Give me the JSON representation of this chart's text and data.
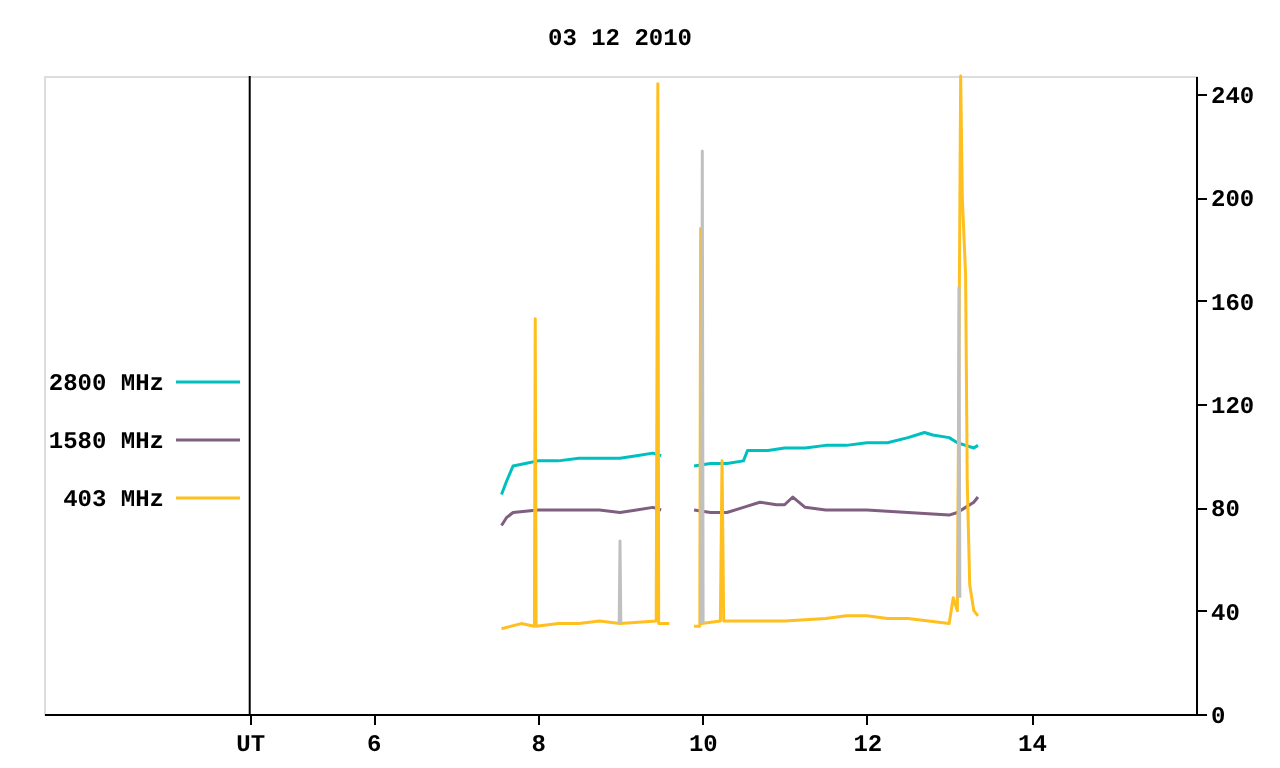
{
  "chart_data": {
    "type": "line",
    "title": "03 12 2010",
    "xlim": [
      2,
      16
    ],
    "xticks": [
      {
        "value": 4.5,
        "label": "UT"
      },
      6,
      8,
      10,
      12,
      14
    ],
    "ylim": [
      0,
      247
    ],
    "yticks": [
      0,
      40,
      80,
      120,
      160,
      200,
      240
    ],
    "grid": false,
    "legend": "left",
    "marker": "none",
    "line_style": "solid",
    "ref_lines": [
      {
        "axis": "x",
        "value": 4.5,
        "color": "#000000"
      }
    ],
    "series": [
      {
        "name": "2800 MHz",
        "color": "#00bfbf",
        "x": [
          7.56,
          7.62,
          7.7,
          7.85,
          8.0,
          8.25,
          8.5,
          8.75,
          9.0,
          9.2,
          9.4,
          9.5,
          9.7,
          9.9,
          10.1,
          10.3,
          10.5,
          10.55,
          10.8,
          11.0,
          11.25,
          11.5,
          11.75,
          12.0,
          12.25,
          12.5,
          12.7,
          12.8,
          13.0,
          13.1,
          13.2,
          13.3,
          13.35
        ],
        "values": [
          85,
          90,
          96,
          97,
          98,
          98,
          99,
          99,
          99,
          100,
          101,
          100,
          null,
          96,
          97,
          97,
          98,
          102,
          102,
          103,
          103,
          104,
          104,
          105,
          105,
          107,
          109,
          108,
          107,
          105,
          104,
          103,
          104
        ]
      },
      {
        "name": "1580 MHz",
        "color": "#7f5f7f",
        "x": [
          7.56,
          7.62,
          7.7,
          8.0,
          8.25,
          8.5,
          8.75,
          9.0,
          9.2,
          9.4,
          9.5,
          9.7,
          9.9,
          10.1,
          10.3,
          10.5,
          10.7,
          10.9,
          11.0,
          11.1,
          11.25,
          11.5,
          11.75,
          12.0,
          12.5,
          13.0,
          13.1,
          13.2,
          13.3,
          13.35
        ],
        "values": [
          73,
          76,
          78,
          79,
          79,
          79,
          79,
          78,
          79,
          80,
          79,
          null,
          79,
          78,
          78,
          80,
          82,
          81,
          81,
          84,
          80,
          79,
          79,
          79,
          78,
          77,
          78,
          80,
          82,
          84
        ]
      },
      {
        "name": "403 MHz",
        "color": "#ffbf1f",
        "x": [
          7.56,
          7.8,
          7.96,
          7.97,
          7.98,
          8.25,
          8.5,
          8.75,
          9.0,
          9.44,
          9.46,
          9.47,
          9.6,
          9.7,
          9.9,
          9.97,
          9.98,
          9.99,
          10.22,
          10.24,
          10.26,
          10.5,
          11.0,
          11.5,
          11.75,
          12.0,
          12.25,
          12.5,
          13.0,
          13.05,
          13.1,
          13.14,
          13.16,
          13.2,
          13.22,
          13.25,
          13.3,
          13.35
        ],
        "values": [
          33,
          35,
          34,
          153,
          34,
          35,
          35,
          36,
          35,
          36,
          244,
          35,
          35,
          null,
          34,
          34,
          188,
          35,
          36,
          98,
          36,
          36,
          36,
          37,
          38,
          38,
          37,
          37,
          35,
          45,
          40,
          247,
          200,
          170,
          90,
          50,
          40,
          38
        ]
      },
      {
        "color": "#c0c0c0",
        "x": [
          8.99,
          9.0,
          9.01,
          9.02,
          9.99,
          10.0,
          10.01,
          10.02,
          13.11,
          13.12,
          13.13
        ],
        "values": [
          35,
          67,
          35,
          null,
          35,
          218,
          35,
          null,
          45,
          165,
          45
        ]
      }
    ]
  }
}
